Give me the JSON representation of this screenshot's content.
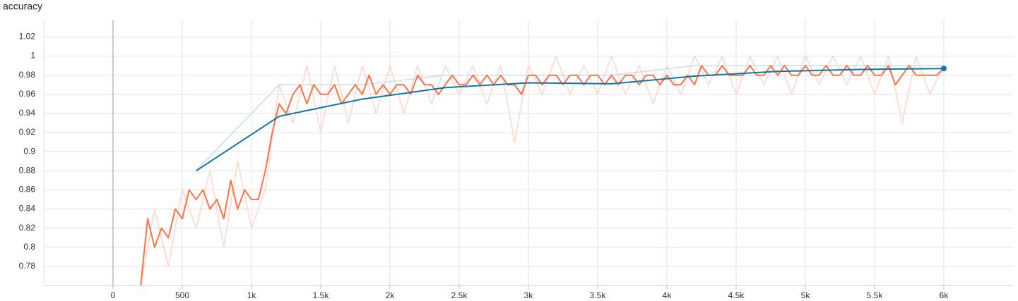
{
  "chart_data": {
    "type": "line",
    "title": "accuracy",
    "xlim": [
      -500,
      6500
    ],
    "ylim": [
      0.76,
      1.038
    ],
    "xticks": [
      0,
      500,
      {
        "value": 1000,
        "label": "1k"
      },
      {
        "value": 1500,
        "label": "1.5k"
      },
      {
        "value": 2000,
        "label": "2k"
      },
      {
        "value": 2500,
        "label": "2.5k"
      },
      {
        "value": 3000,
        "label": "3k"
      },
      {
        "value": 3500,
        "label": "3.5k"
      },
      {
        "value": 4000,
        "label": "4k"
      },
      {
        "value": 4500,
        "label": "4.5k"
      },
      {
        "value": 5000,
        "label": "5k"
      },
      {
        "value": 5500,
        "label": "5.5k"
      },
      {
        "value": 6000,
        "label": "6k"
      }
    ],
    "yticks": [
      0.78,
      0.8,
      0.82,
      0.84,
      0.86,
      0.88,
      0.9,
      0.92,
      0.94,
      0.96,
      0.98,
      1,
      1.02
    ],
    "grid": true,
    "series": [
      {
        "color": "#fcd6cc",
        "width": 1.5,
        "x": [
          200,
          300,
          400,
          500,
          600,
          700,
          800,
          900,
          1000,
          1100,
          1200,
          1300,
          1400,
          1500,
          1600,
          1700,
          1800,
          1900,
          2000,
          2100,
          2200,
          2300,
          2400,
          2500,
          2600,
          2700,
          2800,
          2900,
          3000,
          3100,
          3200,
          3300,
          3400,
          3500,
          3600,
          3700,
          3800,
          3900,
          4000,
          4100,
          4200,
          4300,
          4400,
          4500,
          4600,
          4700,
          4800,
          4900,
          5000,
          5100,
          5200,
          5300,
          5400,
          5500,
          5600,
          5700,
          5800,
          5900,
          6000
        ],
        "values": [
          0.76,
          0.84,
          0.78,
          0.86,
          0.82,
          0.88,
          0.8,
          0.89,
          0.82,
          0.86,
          0.97,
          0.93,
          0.99,
          0.92,
          0.99,
          0.93,
          0.99,
          0.94,
          0.99,
          0.94,
          0.99,
          0.95,
          0.99,
          0.96,
          0.99,
          0.95,
          0.99,
          0.91,
          0.99,
          0.96,
          1.0,
          0.96,
          0.99,
          0.96,
          1.0,
          0.96,
          0.99,
          0.95,
          0.99,
          0.96,
          1.0,
          0.97,
          1.0,
          0.96,
          1.0,
          0.97,
          1.0,
          0.96,
          1.0,
          0.97,
          1.0,
          0.97,
          1.0,
          0.96,
          1.0,
          0.93,
          1.0,
          0.96,
          0.99
        ]
      },
      {
        "color": "#c6dff0",
        "width": 1.5,
        "x": [
          600,
          1200,
          1800,
          2400,
          3000,
          3600,
          4200,
          4800,
          5400,
          6000
        ],
        "values": [
          0.88,
          0.97,
          0.97,
          0.98,
          0.98,
          0.98,
          0.99,
          0.99,
          0.99,
          0.99
        ]
      },
      {
        "color": "#ff7043",
        "width": 2,
        "x": [
          200,
          250,
          300,
          350,
          400,
          450,
          500,
          550,
          600,
          650,
          700,
          750,
          800,
          850,
          900,
          950,
          1000,
          1050,
          1100,
          1150,
          1200,
          1250,
          1300,
          1350,
          1400,
          1450,
          1500,
          1550,
          1600,
          1650,
          1700,
          1750,
          1800,
          1850,
          1900,
          1950,
          2000,
          2050,
          2100,
          2150,
          2200,
          2250,
          2300,
          2350,
          2400,
          2450,
          2500,
          2550,
          2600,
          2650,
          2700,
          2750,
          2800,
          2850,
          2900,
          2950,
          3000,
          3050,
          3100,
          3150,
          3200,
          3250,
          3300,
          3350,
          3400,
          3450,
          3500,
          3550,
          3600,
          3650,
          3700,
          3750,
          3800,
          3850,
          3900,
          3950,
          4000,
          4050,
          4100,
          4150,
          4200,
          4250,
          4300,
          4350,
          4400,
          4450,
          4500,
          4550,
          4600,
          4650,
          4700,
          4750,
          4800,
          4850,
          4900,
          4950,
          5000,
          5050,
          5100,
          5150,
          5200,
          5250,
          5300,
          5350,
          5400,
          5450,
          5500,
          5550,
          5600,
          5650,
          5700,
          5750,
          5800,
          5850,
          5900,
          5950,
          6000
        ],
        "values": [
          0.76,
          0.83,
          0.8,
          0.82,
          0.81,
          0.84,
          0.83,
          0.86,
          0.85,
          0.86,
          0.84,
          0.85,
          0.83,
          0.87,
          0.84,
          0.86,
          0.85,
          0.85,
          0.88,
          0.92,
          0.95,
          0.94,
          0.96,
          0.97,
          0.95,
          0.97,
          0.96,
          0.96,
          0.97,
          0.95,
          0.96,
          0.97,
          0.96,
          0.98,
          0.96,
          0.97,
          0.96,
          0.97,
          0.97,
          0.96,
          0.98,
          0.97,
          0.97,
          0.96,
          0.97,
          0.98,
          0.97,
          0.97,
          0.98,
          0.97,
          0.98,
          0.97,
          0.98,
          0.97,
          0.97,
          0.96,
          0.98,
          0.98,
          0.97,
          0.98,
          0.98,
          0.97,
          0.98,
          0.98,
          0.97,
          0.98,
          0.98,
          0.97,
          0.98,
          0.97,
          0.98,
          0.98,
          0.97,
          0.98,
          0.98,
          0.97,
          0.98,
          0.97,
          0.97,
          0.98,
          0.97,
          0.99,
          0.98,
          0.98,
          0.99,
          0.98,
          0.98,
          0.98,
          0.99,
          0.98,
          0.98,
          0.99,
          0.98,
          0.99,
          0.98,
          0.98,
          0.99,
          0.98,
          0.98,
          0.99,
          0.98,
          0.98,
          0.99,
          0.98,
          0.98,
          0.99,
          0.98,
          0.98,
          0.99,
          0.97,
          0.98,
          0.99,
          0.98,
          0.98,
          0.98,
          0.98,
          0.987
        ]
      },
      {
        "color": "#0f78a8",
        "width": 2,
        "end_marker": true,
        "x": [
          600,
          1200,
          1800,
          2400,
          3000,
          3600,
          4200,
          4800,
          5400,
          6000
        ],
        "values": [
          0.88,
          0.937,
          0.955,
          0.967,
          0.972,
          0.971,
          0.979,
          0.984,
          0.986,
          0.987
        ]
      }
    ]
  }
}
